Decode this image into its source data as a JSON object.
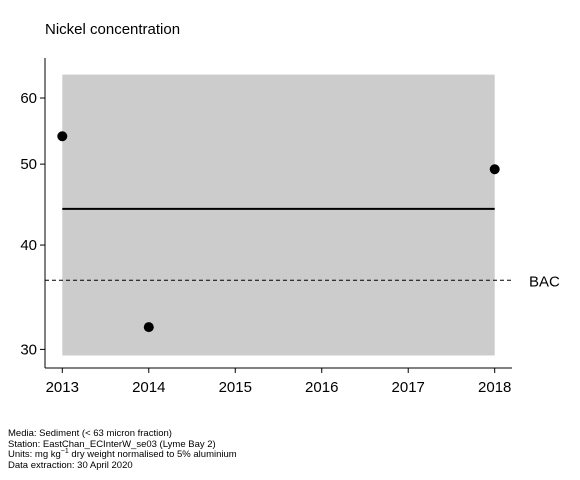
{
  "chart_data": {
    "type": "scatter",
    "title": "Nickel concentration",
    "xlabel": "",
    "ylabel": "",
    "x_ticks": [
      2013,
      2014,
      2015,
      2016,
      2017,
      2018
    ],
    "y_ticks": [
      30,
      40,
      50,
      60
    ],
    "y_scale": "log",
    "xlim": [
      2012.8,
      2018.2
    ],
    "ylim": [
      28.5,
      67
    ],
    "grid": false,
    "points": [
      {
        "x": 2013,
        "y": 54
      },
      {
        "x": 2014,
        "y": 31.9
      },
      {
        "x": 2018,
        "y": 49.3
      }
    ],
    "trend_line": {
      "x": [
        2013,
        2018
      ],
      "y": [
        44.2,
        44.2
      ]
    },
    "confidence_band": {
      "x": [
        2013,
        2018
      ],
      "y_low": 29.5,
      "y_high": 64
    },
    "reference_line": {
      "label": "BAC",
      "y": 36.3,
      "style": "dashed"
    },
    "colors": {
      "band": "#cccccc",
      "points": "#000000",
      "trend": "#000000"
    }
  },
  "caption": {
    "media": "Media: Sediment (< 63 micron fraction)",
    "station": "Station: EastChan_ECInterW_se03 (Lyme Bay 2)",
    "units_prefix": "Units:  mg kg",
    "units_exp": "−1",
    "units_suffix": " dry weight normalised to 5% aluminium",
    "extraction": "Data extraction: 30 April 2020"
  }
}
